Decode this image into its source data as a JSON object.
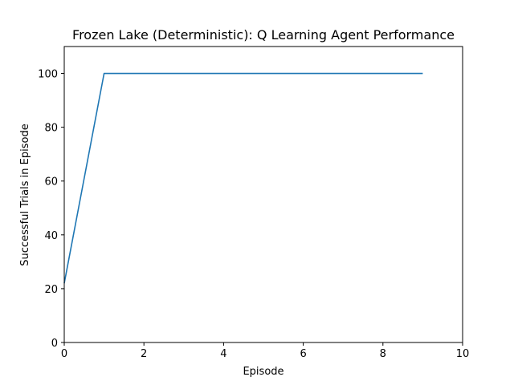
{
  "chart_data": {
    "type": "line",
    "title": "Frozen Lake (Deterministic): Q Learning Agent Performance",
    "xlabel": "Episode",
    "ylabel": "Successful Trials in Episode",
    "xlim": [
      0,
      10
    ],
    "ylim": [
      0,
      110
    ],
    "xticks": [
      0,
      2,
      4,
      6,
      8,
      10
    ],
    "yticks": [
      0,
      20,
      40,
      60,
      80,
      100
    ],
    "grid": false,
    "legend": "none",
    "series": [
      {
        "color": "#1f77b4",
        "x": [
          0,
          1,
          2,
          3,
          4,
          5,
          6,
          7,
          8,
          9
        ],
        "y": [
          22,
          100,
          100,
          100,
          100,
          100,
          100,
          100,
          100,
          100
        ]
      }
    ]
  }
}
